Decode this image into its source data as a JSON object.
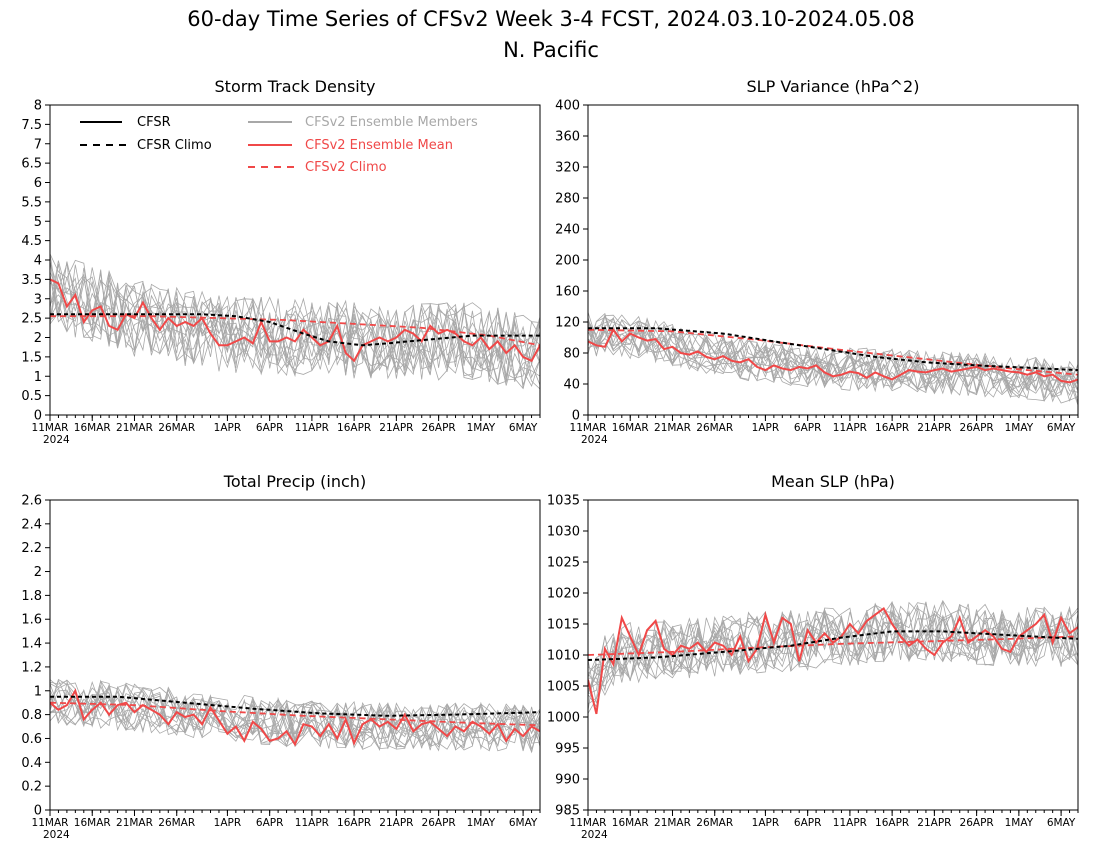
{
  "figure": {
    "title_line1": "60-day Time Series of CFSv2 Week 3-4 FCST, 2024.03.10-2024.05.08",
    "title_line2": "N. Pacific"
  },
  "x_axis": {
    "tick_labels": [
      "11MAR",
      "16MAR",
      "21MAR",
      "26MAR",
      "1APR",
      "6APR",
      "11APR",
      "16APR",
      "21APR",
      "26APR",
      "1MAY",
      "6MAY"
    ],
    "tick_days": [
      0,
      5,
      10,
      15,
      21,
      26,
      31,
      36,
      41,
      46,
      51,
      56
    ],
    "year_label": "2024",
    "day_range": [
      0,
      58
    ]
  },
  "legend": {
    "cfsr": "CFSR",
    "cfsr_climo": "CFSR Climo",
    "members": "CFSv2 Ensemble Members",
    "ens_mean": "CFSv2 Ensemble Mean",
    "cfsv2_climo": "CFSv2 Climo"
  },
  "colors": {
    "members": "#a8a8a8",
    "ens_mean": "#f04848",
    "cfsr": "#000000",
    "cfsv2_climo": "#f04848"
  },
  "chart_data": [
    {
      "type": "line",
      "title": "Storm Track Density",
      "ylim": [
        0,
        8
      ],
      "yticks": [
        0,
        0.5,
        1,
        1.5,
        2,
        2.5,
        3,
        3.5,
        4,
        4.5,
        5,
        5.5,
        6,
        6.5,
        7,
        7.5,
        8
      ],
      "cfsr_climo": [
        [
          0,
          2.6
        ],
        [
          10,
          2.6
        ],
        [
          18,
          2.6
        ],
        [
          22,
          2.55
        ],
        [
          26,
          2.4
        ],
        [
          30,
          2.1
        ],
        [
          33,
          1.9
        ],
        [
          37,
          1.8
        ],
        [
          40,
          1.85
        ],
        [
          45,
          1.95
        ],
        [
          50,
          2.05
        ],
        [
          58,
          2.05
        ]
      ],
      "cfsv2_climo": [
        [
          0,
          2.55
        ],
        [
          12,
          2.55
        ],
        [
          20,
          2.5
        ],
        [
          28,
          2.45
        ],
        [
          36,
          2.35
        ],
        [
          44,
          2.25
        ],
        [
          52,
          2.05
        ],
        [
          58,
          1.8
        ]
      ],
      "ens_mean": [
        [
          0,
          3.5
        ],
        [
          1,
          3.4
        ],
        [
          2,
          2.8
        ],
        [
          3,
          3.1
        ],
        [
          4,
          2.4
        ],
        [
          5,
          2.7
        ],
        [
          6,
          2.8
        ],
        [
          7,
          2.3
        ],
        [
          8,
          2.2
        ],
        [
          9,
          2.6
        ],
        [
          10,
          2.5
        ],
        [
          11,
          2.9
        ],
        [
          12,
          2.5
        ],
        [
          13,
          2.2
        ],
        [
          14,
          2.5
        ],
        [
          15,
          2.3
        ],
        [
          16,
          2.4
        ],
        [
          17,
          2.3
        ],
        [
          18,
          2.5
        ],
        [
          19,
          2.1
        ],
        [
          20,
          1.8
        ],
        [
          21,
          1.8
        ],
        [
          22,
          1.9
        ],
        [
          23,
          2.0
        ],
        [
          24,
          1.85
        ],
        [
          25,
          2.4
        ],
        [
          26,
          1.9
        ],
        [
          27,
          1.9
        ],
        [
          28,
          2.0
        ],
        [
          29,
          1.9
        ],
        [
          30,
          2.2
        ],
        [
          31,
          2.0
        ],
        [
          32,
          1.8
        ],
        [
          33,
          1.9
        ],
        [
          34,
          2.3
        ],
        [
          35,
          1.6
        ],
        [
          36,
          1.4
        ],
        [
          37,
          1.8
        ],
        [
          38,
          1.9
        ],
        [
          39,
          2.0
        ],
        [
          40,
          1.9
        ],
        [
          41,
          2.0
        ],
        [
          42,
          2.2
        ],
        [
          43,
          2.1
        ],
        [
          44,
          1.9
        ],
        [
          45,
          2.3
        ],
        [
          46,
          2.1
        ],
        [
          47,
          2.2
        ],
        [
          48,
          2.1
        ],
        [
          49,
          1.9
        ],
        [
          50,
          1.8
        ],
        [
          51,
          2.0
        ],
        [
          52,
          1.7
        ],
        [
          53,
          1.9
        ],
        [
          54,
          1.6
        ],
        [
          55,
          1.8
        ],
        [
          56,
          1.5
        ],
        [
          57,
          1.4
        ],
        [
          58,
          1.8
        ]
      ],
      "member_base": [
        [
          0,
          3.2
        ],
        [
          10,
          2.5
        ],
        [
          20,
          2.1
        ],
        [
          30,
          2.0
        ],
        [
          40,
          1.9
        ],
        [
          50,
          1.9
        ],
        [
          58,
          1.6
        ]
      ],
      "member_spread": 1.0,
      "member_count": 16
    },
    {
      "type": "line",
      "title": "SLP Variance (hPa^2)",
      "ylim": [
        0,
        400
      ],
      "yticks": [
        0,
        40,
        80,
        120,
        160,
        200,
        240,
        280,
        320,
        360,
        400
      ],
      "cfsr_climo": [
        [
          0,
          112
        ],
        [
          8,
          112
        ],
        [
          16,
          105
        ],
        [
          22,
          95
        ],
        [
          28,
          85
        ],
        [
          34,
          75
        ],
        [
          40,
          68
        ],
        [
          46,
          64
        ],
        [
          52,
          61
        ],
        [
          58,
          58
        ]
      ],
      "cfsv2_climo": [
        [
          0,
          110
        ],
        [
          10,
          108
        ],
        [
          20,
          97
        ],
        [
          30,
          84
        ],
        [
          40,
          72
        ],
        [
          50,
          60
        ],
        [
          58,
          52
        ]
      ],
      "ens_mean": [
        [
          0,
          95
        ],
        [
          1,
          90
        ],
        [
          2,
          88
        ],
        [
          3,
          110
        ],
        [
          4,
          95
        ],
        [
          5,
          105
        ],
        [
          6,
          100
        ],
        [
          7,
          96
        ],
        [
          8,
          98
        ],
        [
          9,
          85
        ],
        [
          10,
          88
        ],
        [
          11,
          80
        ],
        [
          12,
          78
        ],
        [
          13,
          82
        ],
        [
          14,
          75
        ],
        [
          15,
          72
        ],
        [
          16,
          76
        ],
        [
          17,
          70
        ],
        [
          18,
          68
        ],
        [
          19,
          72
        ],
        [
          20,
          62
        ],
        [
          21,
          58
        ],
        [
          22,
          64
        ],
        [
          23,
          60
        ],
        [
          24,
          58
        ],
        [
          25,
          62
        ],
        [
          26,
          60
        ],
        [
          27,
          64
        ],
        [
          28,
          55
        ],
        [
          29,
          50
        ],
        [
          30,
          52
        ],
        [
          31,
          56
        ],
        [
          32,
          54
        ],
        [
          33,
          48
        ],
        [
          34,
          55
        ],
        [
          35,
          50
        ],
        [
          36,
          46
        ],
        [
          37,
          52
        ],
        [
          38,
          58
        ],
        [
          39,
          56
        ],
        [
          40,
          55
        ],
        [
          41,
          58
        ],
        [
          42,
          60
        ],
        [
          43,
          56
        ],
        [
          44,
          58
        ],
        [
          45,
          60
        ],
        [
          46,
          62
        ],
        [
          47,
          58
        ],
        [
          48,
          60
        ],
        [
          49,
          58
        ],
        [
          50,
          56
        ],
        [
          51,
          55
        ],
        [
          52,
          52
        ],
        [
          53,
          55
        ],
        [
          54,
          50
        ],
        [
          55,
          52
        ],
        [
          56,
          44
        ],
        [
          57,
          42
        ],
        [
          58,
          46
        ]
      ],
      "member_base": [
        [
          0,
          105
        ],
        [
          6,
          100
        ],
        [
          12,
          85
        ],
        [
          20,
          70
        ],
        [
          30,
          60
        ],
        [
          40,
          55
        ],
        [
          50,
          50
        ],
        [
          58,
          40
        ]
      ],
      "member_spread": 28,
      "member_count": 16
    },
    {
      "type": "line",
      "title": "Total Precip (inch)",
      "ylim": [
        0,
        2.6
      ],
      "yticks": [
        0,
        0.2,
        0.4,
        0.6,
        0.8,
        1,
        1.2,
        1.4,
        1.6,
        1.8,
        2,
        2.2,
        2.4,
        2.6
      ],
      "cfsr_climo": [
        [
          0,
          0.95
        ],
        [
          8,
          0.95
        ],
        [
          16,
          0.9
        ],
        [
          24,
          0.85
        ],
        [
          32,
          0.81
        ],
        [
          40,
          0.79
        ],
        [
          48,
          0.8
        ],
        [
          58,
          0.82
        ]
      ],
      "cfsv2_climo": [
        [
          0,
          0.9
        ],
        [
          10,
          0.88
        ],
        [
          20,
          0.83
        ],
        [
          30,
          0.79
        ],
        [
          40,
          0.76
        ],
        [
          50,
          0.73
        ],
        [
          58,
          0.71
        ]
      ],
      "ens_mean": [
        [
          0,
          0.9
        ],
        [
          1,
          0.84
        ],
        [
          2,
          0.88
        ],
        [
          3,
          1.0
        ],
        [
          4,
          0.76
        ],
        [
          5,
          0.84
        ],
        [
          6,
          0.9
        ],
        [
          7,
          0.8
        ],
        [
          8,
          0.88
        ],
        [
          9,
          0.9
        ],
        [
          10,
          0.82
        ],
        [
          11,
          0.88
        ],
        [
          12,
          0.84
        ],
        [
          13,
          0.8
        ],
        [
          14,
          0.72
        ],
        [
          15,
          0.82
        ],
        [
          16,
          0.78
        ],
        [
          17,
          0.8
        ],
        [
          18,
          0.72
        ],
        [
          19,
          0.86
        ],
        [
          20,
          0.75
        ],
        [
          21,
          0.64
        ],
        [
          22,
          0.7
        ],
        [
          23,
          0.58
        ],
        [
          24,
          0.74
        ],
        [
          25,
          0.68
        ],
        [
          26,
          0.58
        ],
        [
          27,
          0.6
        ],
        [
          28,
          0.66
        ],
        [
          29,
          0.55
        ],
        [
          30,
          0.72
        ],
        [
          31,
          0.7
        ],
        [
          32,
          0.62
        ],
        [
          33,
          0.72
        ],
        [
          34,
          0.6
        ],
        [
          35,
          0.76
        ],
        [
          36,
          0.56
        ],
        [
          37,
          0.72
        ],
        [
          38,
          0.76
        ],
        [
          39,
          0.7
        ],
        [
          40,
          0.74
        ],
        [
          41,
          0.68
        ],
        [
          42,
          0.8
        ],
        [
          43,
          0.66
        ],
        [
          44,
          0.72
        ],
        [
          45,
          0.74
        ],
        [
          46,
          0.68
        ],
        [
          47,
          0.62
        ],
        [
          48,
          0.7
        ],
        [
          49,
          0.66
        ],
        [
          50,
          0.74
        ],
        [
          51,
          0.7
        ],
        [
          52,
          0.64
        ],
        [
          53,
          0.72
        ],
        [
          54,
          0.58
        ],
        [
          55,
          0.68
        ],
        [
          56,
          0.62
        ],
        [
          57,
          0.7
        ],
        [
          58,
          0.66
        ]
      ],
      "member_base": [
        [
          0,
          0.92
        ],
        [
          10,
          0.86
        ],
        [
          20,
          0.78
        ],
        [
          30,
          0.72
        ],
        [
          40,
          0.7
        ],
        [
          50,
          0.7
        ],
        [
          58,
          0.68
        ]
      ],
      "member_spread": 0.2,
      "member_count": 16
    },
    {
      "type": "line",
      "title": "Mean SLP (hPa)",
      "ylim": [
        985,
        1035
      ],
      "yticks": [
        985,
        990,
        995,
        1000,
        1005,
        1010,
        1015,
        1020,
        1025,
        1030,
        1035
      ],
      "cfsr_climo": [
        [
          0,
          1009.2
        ],
        [
          8,
          1009.6
        ],
        [
          16,
          1010.5
        ],
        [
          24,
          1011.5
        ],
        [
          30,
          1012.8
        ],
        [
          36,
          1013.8
        ],
        [
          42,
          1013.8
        ],
        [
          50,
          1013.2
        ],
        [
          58,
          1012.6
        ]
      ],
      "cfsv2_climo": [
        [
          0,
          1010.0
        ],
        [
          10,
          1010.5
        ],
        [
          20,
          1011.2
        ],
        [
          30,
          1011.8
        ],
        [
          40,
          1012.2
        ],
        [
          50,
          1012.6
        ],
        [
          58,
          1013.0
        ]
      ],
      "ens_mean": [
        [
          0,
          1006
        ],
        [
          1,
          1000.5
        ],
        [
          2,
          1011
        ],
        [
          3,
          1008.5
        ],
        [
          4,
          1016
        ],
        [
          5,
          1013
        ],
        [
          6,
          1010
        ],
        [
          7,
          1014
        ],
        [
          8,
          1015.5
        ],
        [
          9,
          1011
        ],
        [
          10,
          1010
        ],
        [
          11,
          1011.5
        ],
        [
          12,
          1011
        ],
        [
          13,
          1012
        ],
        [
          14,
          1010.5
        ],
        [
          15,
          1012
        ],
        [
          16,
          1011.5
        ],
        [
          17,
          1010
        ],
        [
          18,
          1013
        ],
        [
          19,
          1009
        ],
        [
          20,
          1011
        ],
        [
          21,
          1016.5
        ],
        [
          22,
          1012
        ],
        [
          23,
          1016
        ],
        [
          24,
          1015
        ],
        [
          25,
          1009
        ],
        [
          26,
          1014
        ],
        [
          27,
          1012
        ],
        [
          28,
          1013.5
        ],
        [
          29,
          1012
        ],
        [
          30,
          1013
        ],
        [
          31,
          1015
        ],
        [
          32,
          1013.5
        ],
        [
          33,
          1015.5
        ],
        [
          34,
          1016.5
        ],
        [
          35,
          1017.5
        ],
        [
          36,
          1015
        ],
        [
          37,
          1013
        ],
        [
          38,
          1011.5
        ],
        [
          39,
          1012.5
        ],
        [
          40,
          1011
        ],
        [
          41,
          1010
        ],
        [
          42,
          1012
        ],
        [
          43,
          1013
        ],
        [
          44,
          1016
        ],
        [
          45,
          1012
        ],
        [
          46,
          1013
        ],
        [
          47,
          1014
        ],
        [
          48,
          1013
        ],
        [
          49,
          1011
        ],
        [
          50,
          1010.5
        ],
        [
          51,
          1013
        ],
        [
          52,
          1014
        ],
        [
          53,
          1015
        ],
        [
          54,
          1016.5
        ],
        [
          55,
          1012
        ],
        [
          56,
          1016
        ],
        [
          57,
          1013.5
        ],
        [
          58,
          1014.5
        ]
      ],
      "member_base": [
        [
          0,
          1005
        ],
        [
          3,
          1010
        ],
        [
          10,
          1011
        ],
        [
          20,
          1012
        ],
        [
          30,
          1013
        ],
        [
          40,
          1014
        ],
        [
          50,
          1013
        ],
        [
          58,
          1013
        ]
      ],
      "member_spread": 5,
      "member_count": 16
    }
  ]
}
